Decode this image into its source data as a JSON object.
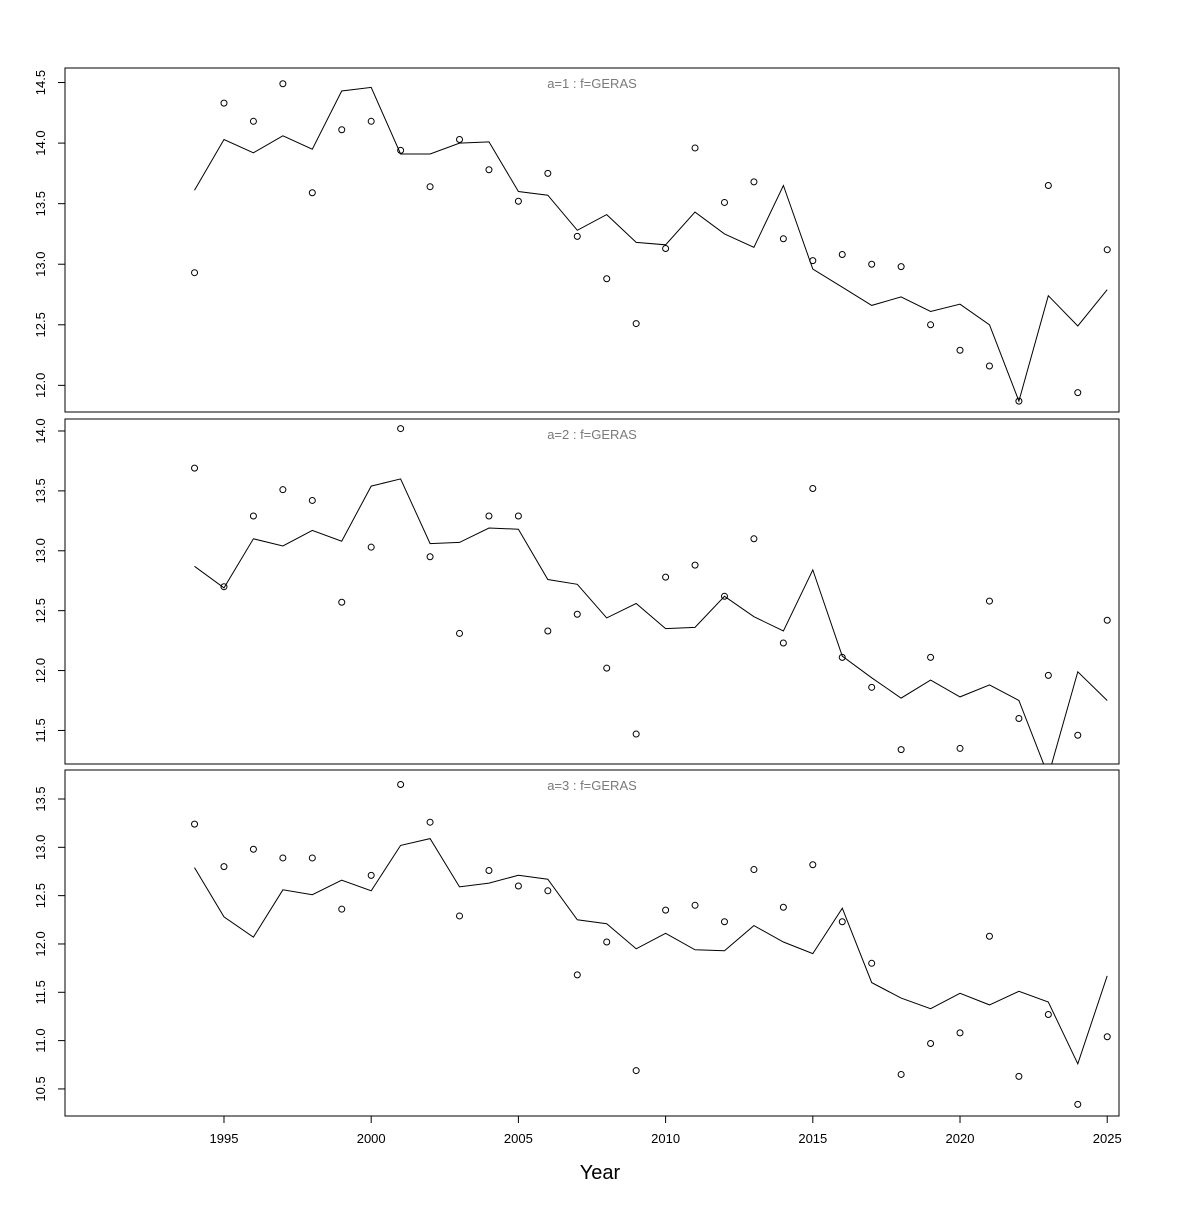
{
  "chart_data": {
    "type": "line",
    "xlabel": "Year",
    "x_ticks": [
      1995,
      2000,
      2005,
      2010,
      2015,
      2020,
      2025
    ],
    "xlim": [
      1989.6,
      2025.4
    ],
    "years": [
      1994,
      1995,
      1996,
      1997,
      1998,
      1999,
      2000,
      2001,
      2002,
      2003,
      2004,
      2005,
      2006,
      2007,
      2008,
      2009,
      2010,
      2011,
      2012,
      2013,
      2014,
      2015,
      2016,
      2017,
      2018,
      2019,
      2020,
      2021,
      2022,
      2023,
      2024,
      2025
    ],
    "panels": [
      {
        "title": "a=1  :  f=GERAS",
        "ylim": [
          11.78,
          14.62
        ],
        "y_ticks": [
          12.0,
          12.5,
          13.0,
          13.5,
          14.0,
          14.5
        ],
        "y_tick_labels": [
          "12.0",
          "12.5",
          "13.0",
          "13.5",
          "14.0",
          "14.5"
        ],
        "observed": [
          12.93,
          14.33,
          14.18,
          14.49,
          13.59,
          14.11,
          14.18,
          13.94,
          13.64,
          14.03,
          13.78,
          13.52,
          13.75,
          13.23,
          12.88,
          12.51,
          13.13,
          13.96,
          13.51,
          13.68,
          13.21,
          13.03,
          13.08,
          13.0,
          12.98,
          12.5,
          12.29,
          12.16,
          11.87,
          13.65,
          11.94,
          13.12
        ],
        "fitted": [
          13.61,
          14.03,
          13.92,
          14.06,
          13.95,
          14.43,
          14.46,
          13.91,
          13.91,
          14.0,
          14.01,
          13.6,
          13.57,
          13.28,
          13.41,
          13.18,
          13.16,
          13.43,
          13.25,
          13.14,
          13.65,
          12.96,
          12.81,
          12.66,
          12.73,
          12.61,
          12.67,
          12.5,
          11.87,
          12.74,
          12.49,
          12.79
        ]
      },
      {
        "title": "a=2  :  f=GERAS",
        "ylim": [
          11.22,
          14.1
        ],
        "y_ticks": [
          11.5,
          12.0,
          12.5,
          13.0,
          13.5,
          14.0
        ],
        "y_tick_labels": [
          "11.5",
          "12.0",
          "12.5",
          "13.0",
          "13.5",
          "14.0"
        ],
        "observed": [
          13.69,
          12.7,
          13.29,
          13.51,
          13.42,
          12.57,
          13.03,
          14.02,
          12.95,
          12.31,
          13.29,
          13.29,
          12.33,
          12.47,
          12.02,
          11.47,
          12.78,
          12.88,
          12.62,
          13.1,
          12.23,
          13.52,
          12.11,
          11.86,
          11.34,
          12.11,
          11.35,
          12.58,
          11.6,
          11.96,
          11.46,
          12.42
        ],
        "fitted": [
          12.87,
          12.69,
          13.1,
          13.04,
          13.17,
          13.08,
          13.54,
          13.6,
          13.06,
          13.07,
          13.19,
          13.18,
          12.76,
          12.72,
          12.44,
          12.56,
          12.35,
          12.36,
          12.62,
          12.45,
          12.33,
          12.84,
          12.12,
          11.94,
          11.77,
          11.92,
          11.78,
          11.88,
          11.75,
          11.12,
          11.99,
          11.75
        ]
      },
      {
        "title": "a=3  :  f=GERAS",
        "ylim": [
          10.22,
          13.8
        ],
        "y_ticks": [
          10.5,
          11.0,
          11.5,
          12.0,
          12.5,
          13.0,
          13.5
        ],
        "y_tick_labels": [
          "10.5",
          "11.0",
          "11.5",
          "12.0",
          "12.5",
          "13.0",
          "13.5"
        ],
        "observed": [
          13.24,
          12.8,
          12.98,
          12.89,
          12.89,
          12.36,
          12.71,
          13.65,
          13.26,
          12.29,
          12.76,
          12.6,
          12.55,
          11.68,
          12.02,
          10.69,
          12.35,
          12.4,
          12.23,
          12.77,
          12.38,
          12.82,
          12.23,
          11.8,
          10.65,
          10.97,
          11.08,
          12.08,
          10.63,
          11.27,
          10.34,
          11.04
        ],
        "fitted": [
          12.79,
          12.28,
          12.07,
          12.56,
          12.51,
          12.66,
          12.55,
          13.02,
          13.09,
          12.59,
          12.63,
          12.71,
          12.67,
          12.25,
          12.21,
          11.95,
          12.11,
          11.94,
          11.93,
          12.19,
          12.02,
          11.9,
          12.37,
          11.6,
          11.44,
          11.33,
          11.49,
          11.37,
          11.51,
          11.4,
          10.76,
          11.67
        ]
      }
    ]
  }
}
